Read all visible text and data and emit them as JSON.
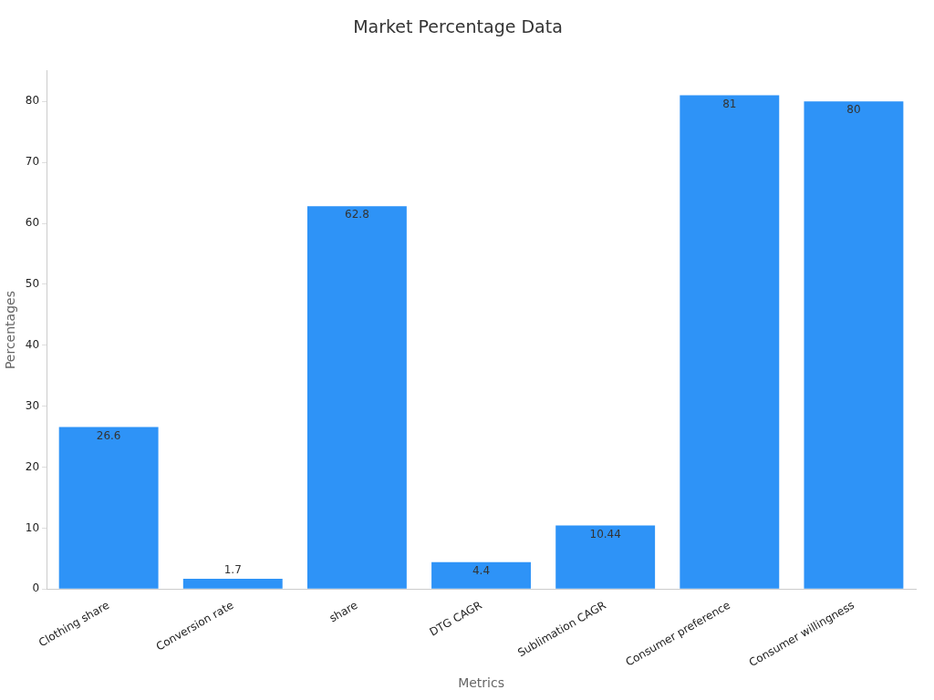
{
  "chart_data": {
    "type": "bar",
    "title": "Market Percentage Data",
    "xlabel": "Metrics",
    "ylabel": "Percentages",
    "categories": [
      "Clothing share",
      "Conversion rate",
      "share",
      "DTG CAGR",
      "Sublimation CAGR",
      "Consumer preference",
      "Consumer willingness"
    ],
    "values": [
      26.6,
      1.7,
      62.8,
      4.4,
      10.44,
      81,
      80
    ],
    "color": "#2e93f7",
    "ylim": [
      0,
      85
    ],
    "yticks": [
      0,
      10,
      20,
      30,
      40,
      50,
      60,
      70,
      80
    ],
    "grid": false,
    "legend": false,
    "data_labels": true
  }
}
